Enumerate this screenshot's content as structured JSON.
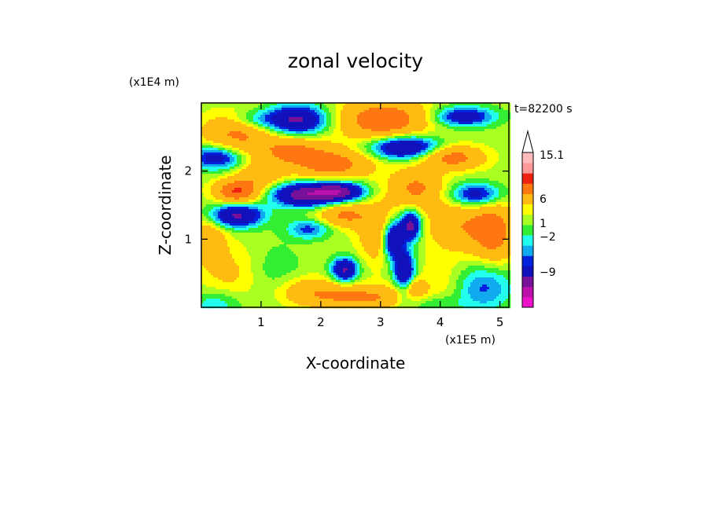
{
  "chart_data": {
    "type": "heatmap",
    "title": "zonal velocity",
    "xlabel": "X-coordinate",
    "ylabel": "Z-coordinate",
    "x_unit": "(x1E5 m)",
    "y_unit": "(x1E4 m)",
    "time_label": "t=82200 s",
    "xlim": [
      0,
      5.15
    ],
    "ylim": [
      0,
      3.0
    ],
    "x_ticks": [
      "1",
      "2",
      "3",
      "4",
      "5"
    ],
    "y_ticks": [
      "1",
      "2"
    ],
    "colorbar_labels": [
      "15.1",
      "6",
      "1",
      "−2",
      "−9"
    ],
    "colorbar_levels": [
      -15,
      -12,
      -9,
      -6,
      -3,
      -2,
      -1,
      0,
      1,
      2,
      3,
      6,
      9,
      12,
      15.1
    ],
    "colors": [
      "#ee11cc",
      "#bb11aa",
      "#771199",
      "#1111bb",
      "#0022dd",
      "#11aaee",
      "#22ffee",
      "#33ee33",
      "#aaff22",
      "#ffff00",
      "#ffbb11",
      "#ff7711",
      "#ee2211",
      "#ff9999",
      "#ffbbbb"
    ],
    "grid": false,
    "field": {
      "background": 1.5,
      "blobs": [
        {
          "x": 0.25,
          "z": 2.2,
          "a": -6,
          "sx": 0.3,
          "sz": 0.12
        },
        {
          "x": 0.6,
          "z": 1.7,
          "a": 8,
          "sx": 0.25,
          "sz": 0.12
        },
        {
          "x": 0.6,
          "z": 1.35,
          "a": -8,
          "sx": 0.3,
          "sz": 0.12
        },
        {
          "x": 0.5,
          "z": 0.5,
          "a": 2,
          "sx": 0.4,
          "sz": 0.3
        },
        {
          "x": 0.25,
          "z": 0.05,
          "a": -2.5,
          "sx": 0.3,
          "sz": 0.15
        },
        {
          "x": 0.6,
          "z": 2.55,
          "a": 5,
          "sx": 0.4,
          "sz": 0.2
        },
        {
          "x": 0.9,
          "z": 2.75,
          "a": -3,
          "sx": 0.3,
          "sz": 0.1
        },
        {
          "x": 1.6,
          "z": 2.75,
          "a": -8,
          "sx": 0.35,
          "sz": 0.15
        },
        {
          "x": 1.5,
          "z": 2.3,
          "a": 5,
          "sx": 0.4,
          "sz": 0.15
        },
        {
          "x": 1.7,
          "z": 1.65,
          "a": -9,
          "sx": 0.35,
          "sz": 0.12
        },
        {
          "x": 1.8,
          "z": 1.15,
          "a": -4,
          "sx": 0.25,
          "sz": 0.1
        },
        {
          "x": 2.2,
          "z": 2.1,
          "a": 6,
          "sx": 0.45,
          "sz": 0.15
        },
        {
          "x": 2.3,
          "z": 1.7,
          "a": -9,
          "sx": 0.3,
          "sz": 0.1
        },
        {
          "x": 2.4,
          "z": 1.35,
          "a": 5,
          "sx": 0.3,
          "sz": 0.12
        },
        {
          "x": 2.4,
          "z": 0.55,
          "a": -8,
          "sx": 0.15,
          "sz": 0.12
        },
        {
          "x": 2.7,
          "z": 0.15,
          "a": 5,
          "sx": 0.6,
          "sz": 0.12
        },
        {
          "x": 1.2,
          "z": 0.5,
          "a": -1.5,
          "sx": 0.35,
          "sz": 0.3
        },
        {
          "x": 1.8,
          "z": 0.25,
          "a": 3,
          "sx": 0.4,
          "sz": 0.15
        },
        {
          "x": 3.0,
          "z": 1.1,
          "a": 4,
          "sx": 0.25,
          "sz": 0.3
        },
        {
          "x": 3.2,
          "z": 1.0,
          "a": -9,
          "sx": 0.12,
          "sz": 0.2
        },
        {
          "x": 3.5,
          "z": 1.2,
          "a": -9,
          "sx": 0.12,
          "sz": 0.15
        },
        {
          "x": 3.4,
          "z": 0.5,
          "a": -8,
          "sx": 0.12,
          "sz": 0.25
        },
        {
          "x": 3.05,
          "z": 2.75,
          "a": 7,
          "sx": 0.5,
          "sz": 0.2
        },
        {
          "x": 3.4,
          "z": 2.35,
          "a": -8,
          "sx": 0.4,
          "sz": 0.12
        },
        {
          "x": 3.6,
          "z": 1.75,
          "a": 5,
          "sx": 0.3,
          "sz": 0.2
        },
        {
          "x": 4.2,
          "z": 2.2,
          "a": 6,
          "sx": 0.35,
          "sz": 0.12
        },
        {
          "x": 4.4,
          "z": 2.8,
          "a": -6,
          "sx": 0.35,
          "sz": 0.1
        },
        {
          "x": 4.6,
          "z": 1.65,
          "a": -6,
          "sx": 0.3,
          "sz": 0.12
        },
        {
          "x": 4.3,
          "z": 1.2,
          "a": 4,
          "sx": 0.35,
          "sz": 0.25
        },
        {
          "x": 4.9,
          "z": 1.1,
          "a": 6,
          "sx": 0.25,
          "sz": 0.3
        },
        {
          "x": 4.7,
          "z": 0.3,
          "a": -4,
          "sx": 0.35,
          "sz": 0.25
        },
        {
          "x": 4.1,
          "z": 0.4,
          "a": 1.5,
          "sx": 0.35,
          "sz": 0.25
        },
        {
          "x": 3.9,
          "z": 0.05,
          "a": -2,
          "sx": 0.3,
          "sz": 0.1
        },
        {
          "x": 3.5,
          "z": 0.3,
          "a": 4,
          "sx": 0.15,
          "sz": 0.1
        },
        {
          "x": 1.0,
          "z": 1.95,
          "a": 4,
          "sx": 0.25,
          "sz": 0.12
        },
        {
          "x": 0.1,
          "z": 1.0,
          "a": 4,
          "sx": 0.2,
          "sz": 0.2
        }
      ]
    }
  }
}
